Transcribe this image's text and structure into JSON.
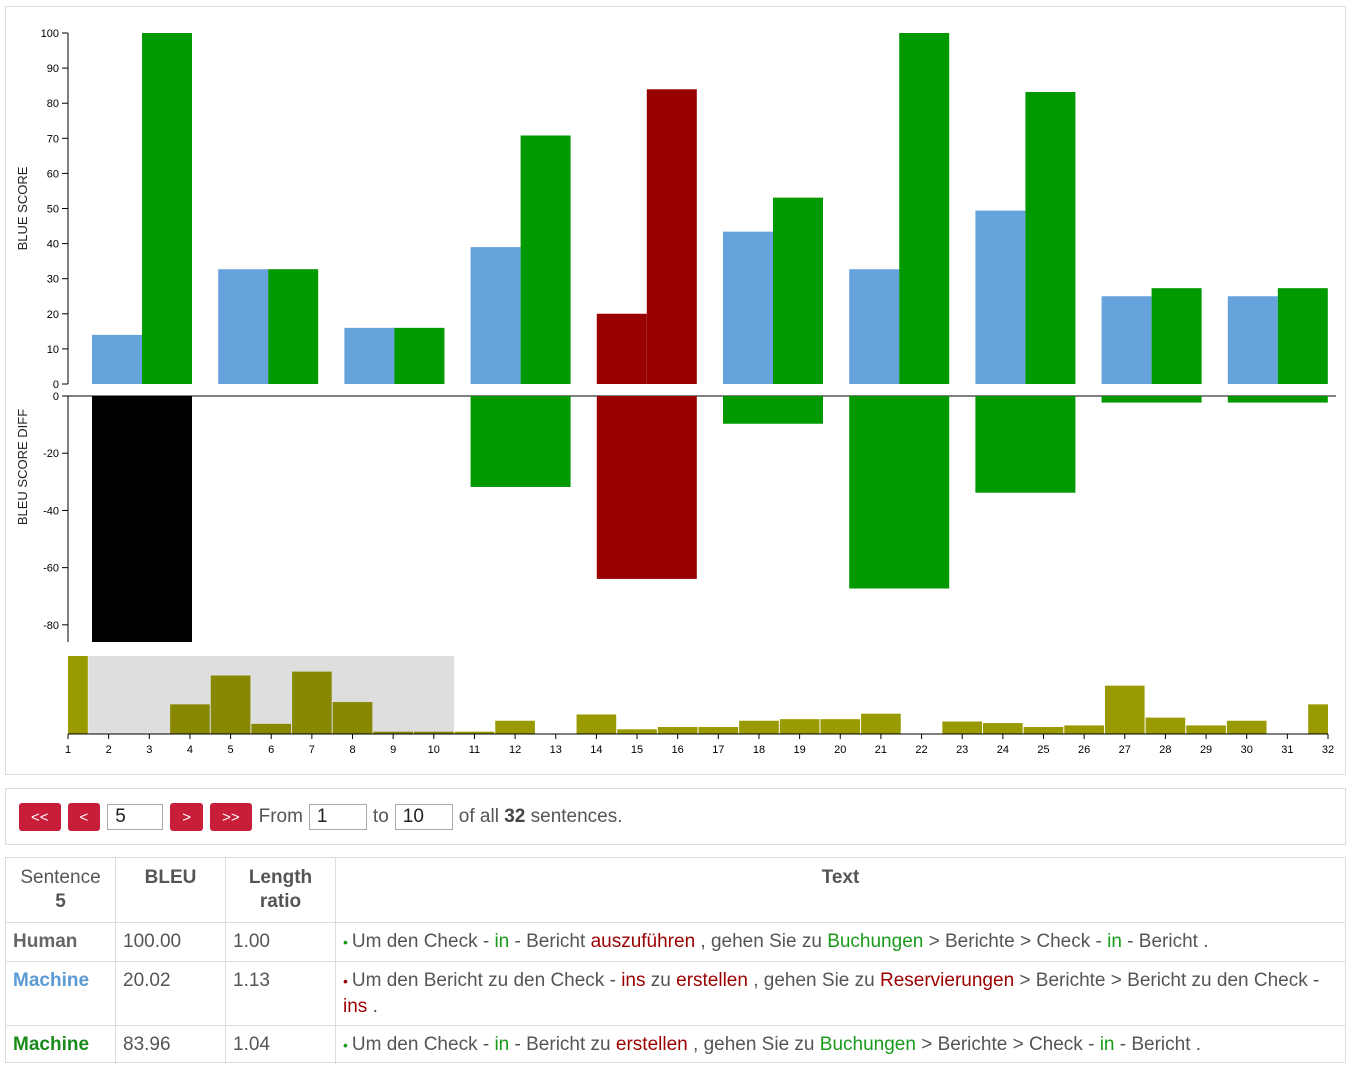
{
  "colors": {
    "baseline_blue": "#66a3dd",
    "better_green": "#009900",
    "worse_red": "#990000",
    "black": "#000000",
    "overview_olive": "#888800",
    "overview_olive_bright": "#999900",
    "button_red": "#c81e3a",
    "machine_blue_label": "#5b9bd5",
    "machine_green_label": "#1a8a1a"
  },
  "chart_data": [
    {
      "type": "bar",
      "ylabel": "BLUE SCORE",
      "ylim": [
        0,
        100
      ],
      "yticks": [
        0,
        10,
        20,
        30,
        40,
        50,
        60,
        70,
        80,
        90,
        100
      ],
      "categories": [
        "1",
        "2",
        "3",
        "4",
        "5",
        "6",
        "7",
        "8",
        "9",
        "10"
      ],
      "series": [
        {
          "values": [
            14,
            32.7,
            16,
            39,
            20.02,
            43.4,
            32.7,
            49.4,
            25,
            25
          ]
        },
        {
          "values": [
            100,
            32.7,
            16,
            70.8,
            83.96,
            53.1,
            100,
            83.2,
            27.3,
            27.3
          ]
        }
      ],
      "second_series_colors": [
        "green",
        "green",
        "green",
        "green",
        "red",
        "green",
        "green",
        "green",
        "green",
        "green"
      ],
      "first_series_colors": [
        "blue",
        "blue",
        "blue",
        "blue",
        "red",
        "blue",
        "blue",
        "blue",
        "blue",
        "blue"
      ],
      "grid": false
    },
    {
      "type": "bar",
      "ylabel": "BLEU SCORE DIFF",
      "ylim": [
        -86,
        0
      ],
      "yticks": [
        0,
        -20,
        -40,
        -60,
        -80
      ],
      "categories": [
        "1",
        "2",
        "3",
        "4",
        "5",
        "6",
        "7",
        "8",
        "9",
        "10"
      ],
      "values": [
        -86,
        0,
        0,
        -31.8,
        -63.94,
        -9.7,
        -67.3,
        -33.8,
        -2.3,
        -2.3
      ],
      "bar_colors": [
        "black",
        "green",
        "green",
        "green",
        "red",
        "green",
        "green",
        "green",
        "green",
        "green"
      ],
      "grid": false
    },
    {
      "type": "bar",
      "title": "",
      "x": [
        1,
        2,
        3,
        4,
        5,
        6,
        7,
        8,
        9,
        10,
        11,
        12,
        13,
        14,
        15,
        16,
        17,
        18,
        19,
        20,
        21,
        22,
        23,
        24,
        25,
        26,
        27,
        28,
        29,
        30,
        31,
        32
      ],
      "xticks": [
        "1",
        "2",
        "3",
        "4",
        "5",
        "6",
        "7",
        "8",
        "9",
        "10",
        "11",
        "12",
        "13",
        "14",
        "15",
        "16",
        "17",
        "18",
        "19",
        "20",
        "21",
        "22",
        "23",
        "24",
        "25",
        "26",
        "27",
        "28",
        "29",
        "30",
        "31",
        "32"
      ],
      "values": [
        100,
        0,
        0,
        38,
        75,
        13,
        80,
        41,
        3,
        3,
        3,
        17,
        0,
        25,
        6,
        9,
        9,
        17,
        19,
        19,
        26,
        0,
        16,
        14,
        9,
        11,
        62,
        21,
        11,
        17,
        0,
        38
      ],
      "ylim": [
        0,
        100
      ],
      "selection": [
        1.5,
        10.5
      ]
    }
  ],
  "nav": {
    "first_label": "<<",
    "prev_label": "<",
    "current_value": "5",
    "next_label": ">",
    "last_label": ">>",
    "from_label": "From",
    "from_value": "1",
    "to_label": "to",
    "to_value": "10",
    "of_all_label": "of all",
    "total": "32",
    "sentences_label": "sentences."
  },
  "table": {
    "col_sentence": "Sentence",
    "col_sentence_num": "5",
    "col_bleu": "BLEU",
    "col_length": "Length ratio",
    "col_text": "Text",
    "rows": [
      {
        "label": "Human",
        "bleu": "100.00",
        "length": "1.00",
        "dot": "•",
        "t1": "Um den Check - ",
        "t2": "in",
        "t3": " - Bericht ",
        "t4": "auszuführen",
        "t5": " , gehen Sie zu ",
        "t6": "Buchungen",
        "t7": " > Berichte > Check - ",
        "t8": "in",
        "t9": " - Bericht ."
      },
      {
        "label": "Machine",
        "bleu": "20.02",
        "length": "1.13",
        "dot": "•",
        "t1": "Um den Bericht zu den Check - ",
        "t2": "ins",
        "t3": " zu ",
        "t4": "erstellen",
        "t5": " , gehen Sie zu ",
        "t6": "Reservierungen",
        "t7": " > Berichte > Bericht zu den Check - ",
        "t8": "ins",
        "t9": " ."
      },
      {
        "label": "Machine",
        "bleu": "83.96",
        "length": "1.04",
        "dot": "•",
        "t1": "Um den Check - ",
        "t2": "in",
        "t3": " - Bericht zu ",
        "t4": "erstellen",
        "t5": " , gehen Sie zu ",
        "t6": "Buchungen",
        "t7": " > Berichte > Check - ",
        "t8": "in",
        "t9": " - Bericht ."
      }
    ]
  }
}
